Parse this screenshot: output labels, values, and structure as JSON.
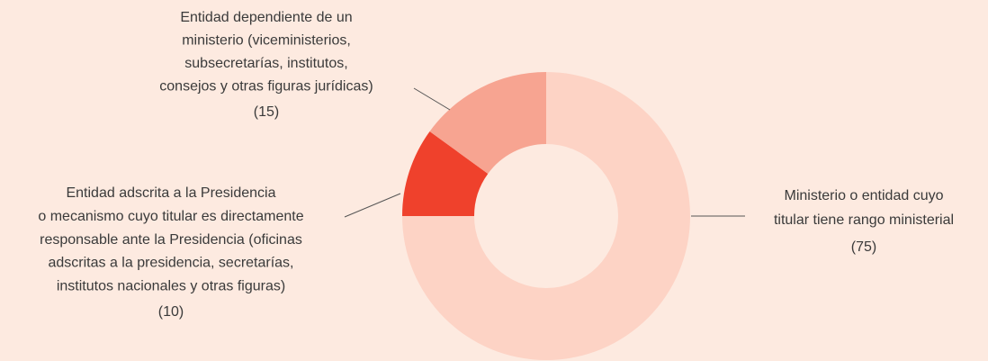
{
  "chart_data": {
    "type": "donut",
    "categories": [
      [
        "Ministerio o entidad cuyo",
        "titular tiene rango ministerial"
      ],
      [
        "Entidad adscrita a la Presidencia",
        "o mecanismo cuyo titular es directamente",
        "responsable ante la Presidencia (oficinas",
        "adscritas a la presidencia, secretarías,",
        "institutos nacionales y otras figuras)"
      ],
      [
        "Entidad dependiente de un",
        "ministerio (viceministerios,",
        "subsecretarías, institutos,",
        "consejos y otras figuras jurídicas)"
      ]
    ],
    "values": [
      75,
      10,
      15
    ],
    "value_labels": [
      "(75)",
      "(10)",
      "(15)"
    ],
    "colors": [
      "#fdd3c5",
      "#ef412c",
      "#f7a491"
    ]
  }
}
